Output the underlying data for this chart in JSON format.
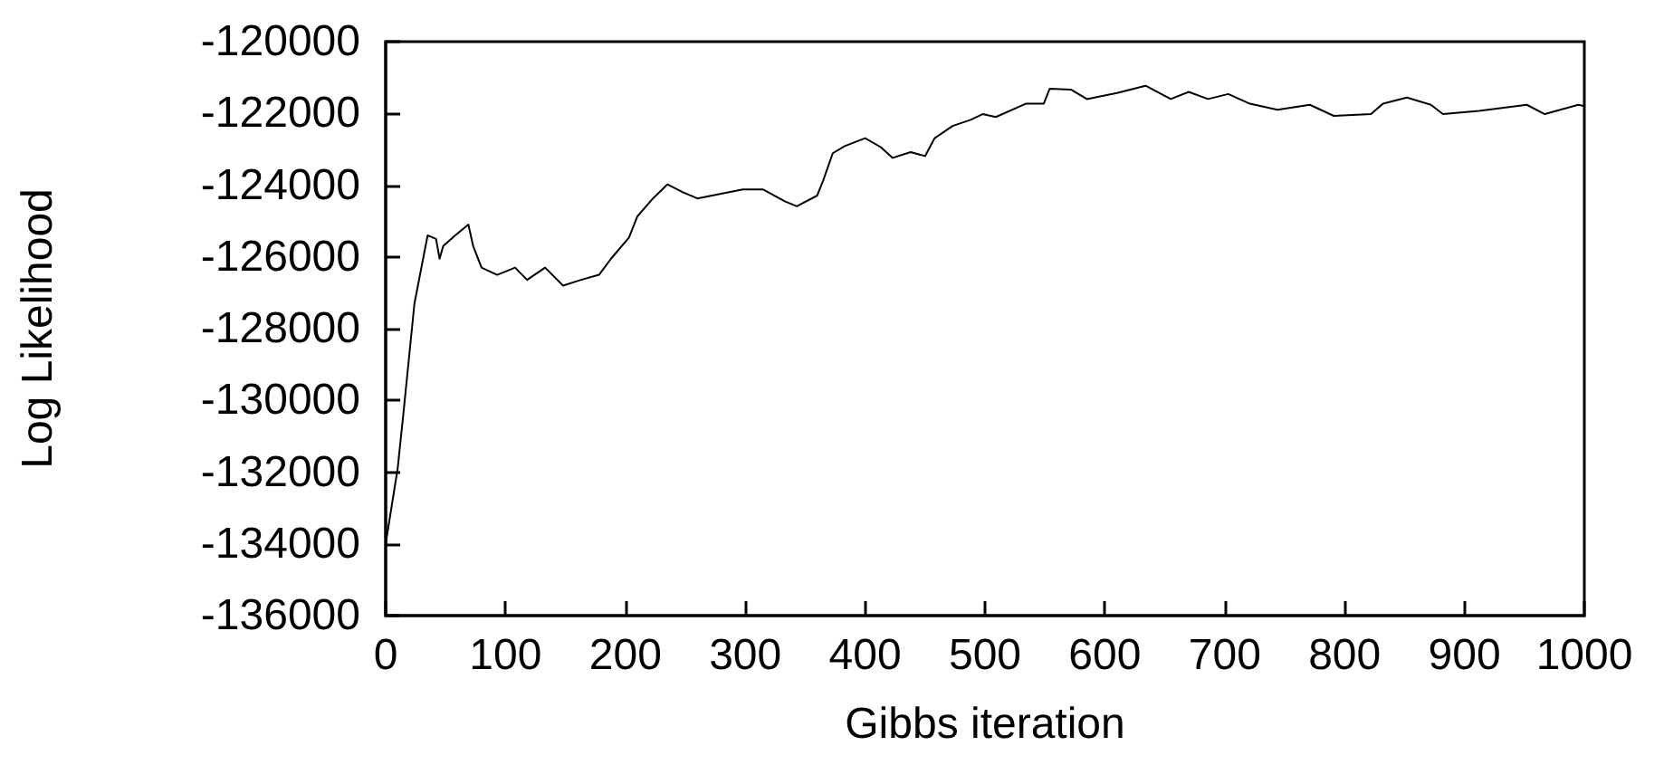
{
  "chart_data": {
    "type": "line",
    "xlabel": "Gibbs iteration",
    "ylabel": "Log Likelihood",
    "xlim": [
      0,
      1000
    ],
    "xticks": [
      0,
      100,
      200,
      300,
      400,
      500,
      600,
      700,
      800,
      900,
      1000
    ],
    "ylim": [
      -136000,
      -120000
    ],
    "yticks": [
      -136000,
      -134000,
      -132000,
      -130000,
      -128000,
      -126000,
      -124000,
      -122000,
      -120000
    ],
    "marker": "none",
    "line_style": "solid",
    "series": [
      {
        "color": "#000000",
        "x": [
          0,
          10,
          15,
          24,
          35,
          42,
          45,
          48,
          58,
          69,
          73,
          80,
          93,
          108,
          118,
          133,
          148,
          163,
          178,
          188,
          203,
          210,
          223,
          235,
          248,
          260,
          278,
          298,
          315,
          333,
          343,
          360,
          365,
          373,
          383,
          400,
          413,
          423,
          438,
          450,
          458,
          473,
          488,
          498,
          509,
          534,
          549,
          554,
          572,
          585,
          610,
          634,
          655,
          670,
          686,
          703,
          721,
          744,
          771,
          791,
          822,
          832,
          852,
          872,
          882,
          912,
          952,
          967,
          995,
          1000
        ],
        "values": [
          -134000,
          -131900,
          -130300,
          -127300,
          -125400,
          -125500,
          -126050,
          -125700,
          -125400,
          -125100,
          -125700,
          -126300,
          -126500,
          -126300,
          -126640,
          -126300,
          -126800,
          -126640,
          -126500,
          -126050,
          -125460,
          -124870,
          -124370,
          -123980,
          -124200,
          -124370,
          -124250,
          -124120,
          -124120,
          -124450,
          -124590,
          -124290,
          -123870,
          -123110,
          -122910,
          -122690,
          -122940,
          -123240,
          -123080,
          -123190,
          -122690,
          -122350,
          -122180,
          -122020,
          -122100,
          -121730,
          -121730,
          -121310,
          -121340,
          -121600,
          -121430,
          -121230,
          -121600,
          -121400,
          -121600,
          -121460,
          -121730,
          -121900,
          -121760,
          -122070,
          -122020,
          -121730,
          -121560,
          -121760,
          -122020,
          -121930,
          -121760,
          -122020,
          -121760,
          -121800
        ]
      }
    ]
  }
}
